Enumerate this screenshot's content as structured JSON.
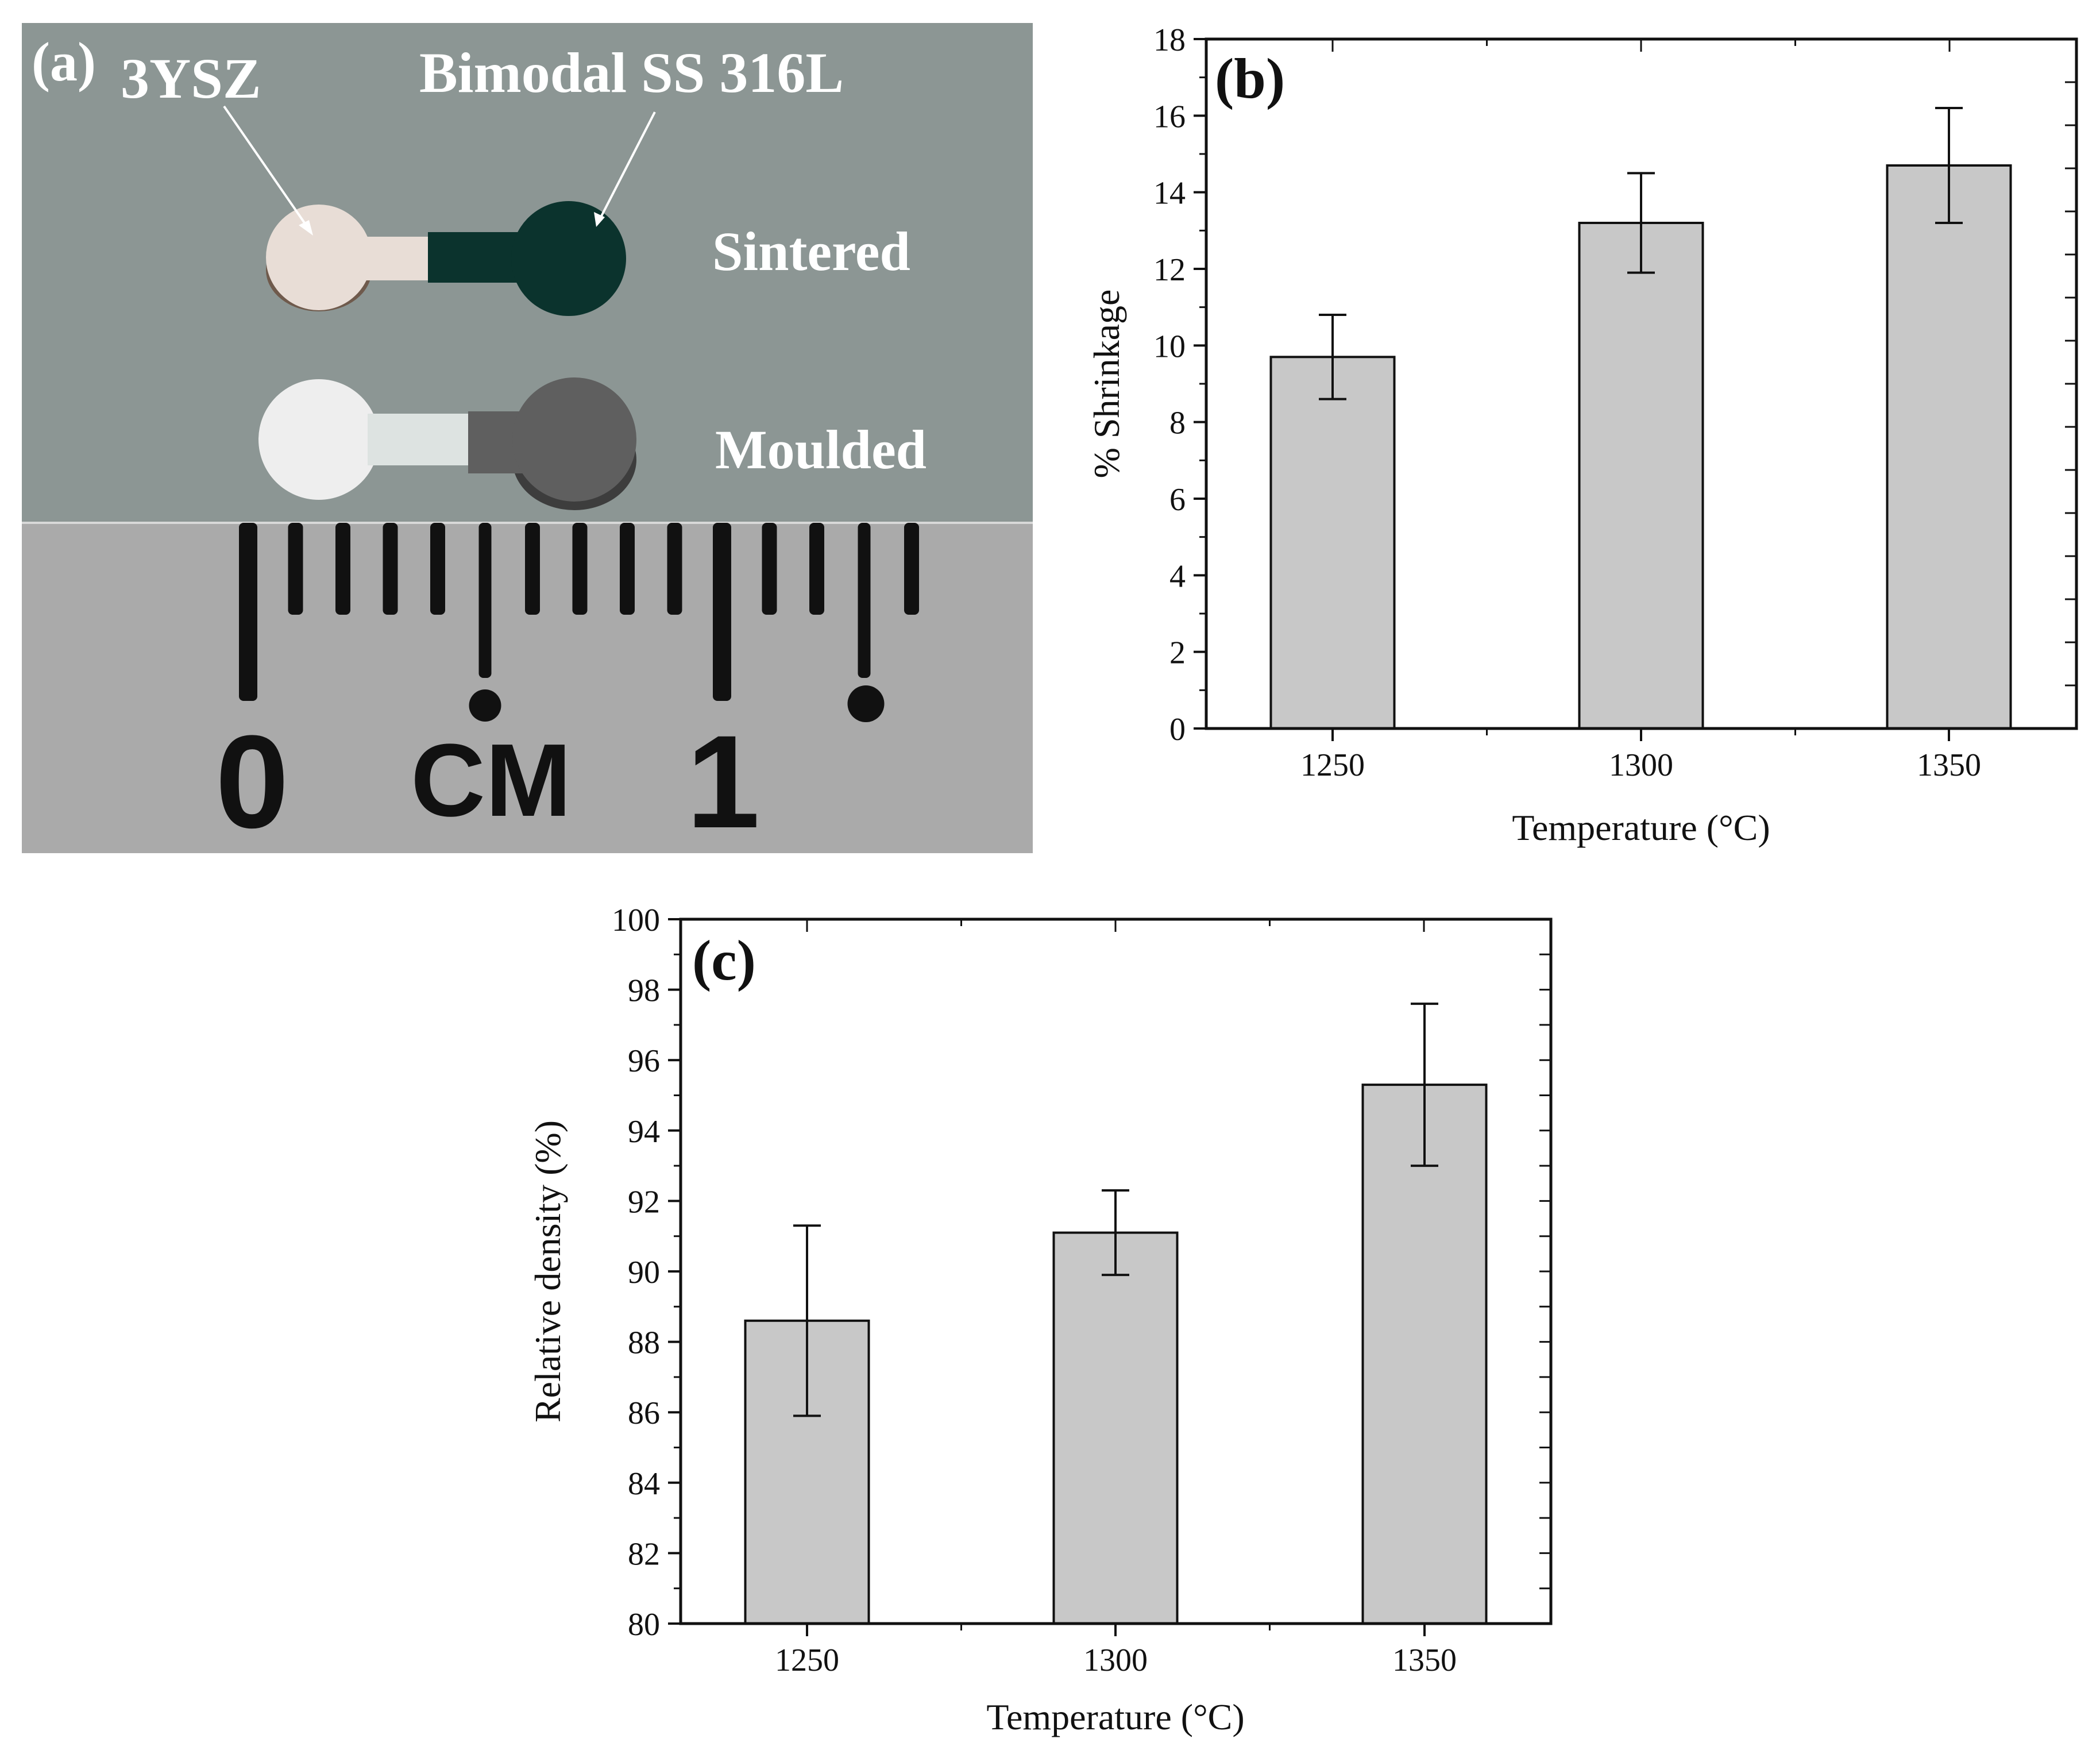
{
  "panel_a": {
    "panel_label": "(a)",
    "label_3ysz": "3YSZ",
    "label_ss": "Bimodal SS 316L",
    "label_sintered": "Sintered",
    "label_moulded": "Moulded",
    "ruler_zero": "0",
    "ruler_cm": "CM",
    "ruler_one": "1",
    "colors": {
      "photo_bg": "#8c9694",
      "ruler_bg": "#aaaaaa",
      "zirconia_sintered": "#e8ddd6",
      "steel_sintered": "#0b332d",
      "zirconia_moulded": "#eeeeee",
      "steel_moulded": "#5f5f5f",
      "ruler_mark": "#111111"
    }
  },
  "chart_data": [
    {
      "panel_label": "(b)",
      "type": "bar",
      "title": "",
      "xlabel": "Temperature (°C)",
      "ylabel": "% Shrinkage",
      "categories": [
        "1250",
        "1300",
        "1350"
      ],
      "values": [
        9.7,
        13.2,
        14.7
      ],
      "errors": [
        1.1,
        1.3,
        1.5
      ],
      "ylim": [
        0,
        18
      ],
      "yticks": [
        0,
        2,
        4,
        6,
        8,
        10,
        12,
        14,
        16,
        18
      ],
      "ytick_labels": [
        "0",
        "2",
        "4",
        "6",
        "8",
        "10",
        "12",
        "14",
        "16",
        "18"
      ],
      "grid": false,
      "bar_color": "#c8c8c8",
      "edge_color": "#111111"
    },
    {
      "panel_label": "(c)",
      "type": "bar",
      "title": "",
      "xlabel": "Temperature (°C)",
      "ylabel": "Relative density (%)",
      "categories": [
        "1250",
        "1300",
        "1350"
      ],
      "values": [
        88.6,
        91.1,
        95.3
      ],
      "errors": [
        2.7,
        1.2,
        2.3
      ],
      "ylim": [
        80,
        100
      ],
      "yticks": [
        80,
        82,
        84,
        86,
        88,
        90,
        92,
        94,
        96,
        98,
        100
      ],
      "ytick_labels": [
        "80",
        "82",
        "84",
        "86",
        "88",
        "90",
        "92",
        "94",
        "96",
        "98",
        "100"
      ],
      "grid": false,
      "bar_color": "#c8c8c8",
      "edge_color": "#111111"
    }
  ]
}
